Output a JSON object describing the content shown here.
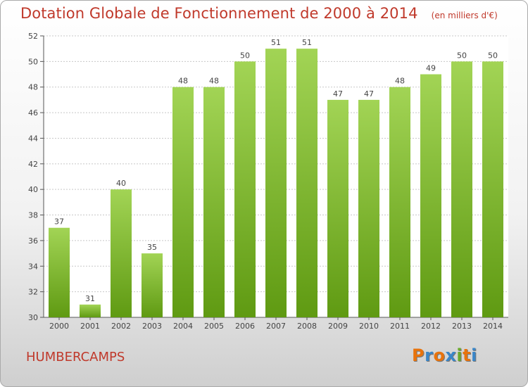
{
  "header": {
    "title": "Dotation Globale de Fonctionnement de 2000 à 2014",
    "unit": "(en milliers d'€)"
  },
  "commune": "HUMBERCAMPS",
  "logo": {
    "text": "Proxiti",
    "letter_colors": [
      "#e8730c",
      "#3a86c8",
      "#e8730c",
      "#3a86c8",
      "#6aa92a",
      "#e8730c",
      "#3a86c8"
    ]
  },
  "colors": {
    "bar_top": "#a2d455",
    "bar_bottom": "#5f9a12",
    "title": "#c0392b",
    "grid": "#c8c8c8"
  },
  "chart_data": {
    "type": "bar",
    "categories": [
      "2000",
      "2001",
      "2002",
      "2003",
      "2004",
      "2005",
      "2006",
      "2007",
      "2008",
      "2009",
      "2010",
      "2011",
      "2012",
      "2013",
      "2014"
    ],
    "values": [
      37,
      31,
      40,
      35,
      48,
      48,
      50,
      51,
      51,
      47,
      47,
      48,
      49,
      50,
      50
    ],
    "ylim": [
      30,
      52
    ],
    "yticks": [
      30,
      32,
      34,
      36,
      38,
      40,
      42,
      44,
      46,
      48,
      50,
      52
    ],
    "grid": true,
    "legend": "none"
  }
}
